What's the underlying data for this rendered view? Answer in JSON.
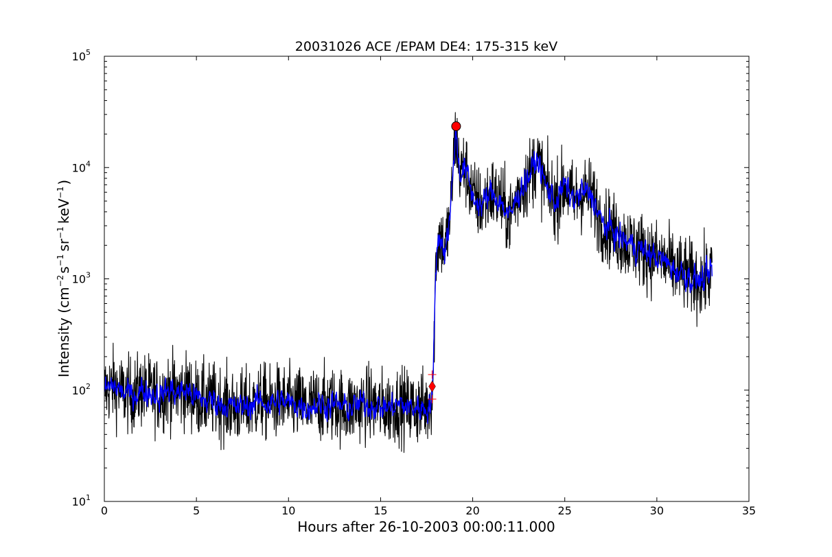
{
  "chart_data": {
    "type": "line",
    "title": "20031026 ACE /EPAM DE4: 175-315 keV",
    "xlabel": "Hours after 26-10-2003 00:00:11.000",
    "ylabel": {
      "prefix": "Intensity (cm",
      "sup1": "−2",
      "mid1": "s",
      "sup2": "−1",
      "mid2": "sr",
      "sup3": "−1",
      "mid3": "keV",
      "sup4": "−1",
      "suffix": ")"
    },
    "xlim": [
      0,
      35
    ],
    "ylim": [
      10,
      100000
    ],
    "yscale": "log",
    "grid": false,
    "x_ticks": [
      "0",
      "5",
      "10",
      "15",
      "20",
      "25",
      "30",
      "35"
    ],
    "y_ticks": [
      {
        "base": "10",
        "exp": "1"
      },
      {
        "base": "10",
        "exp": "2"
      },
      {
        "base": "10",
        "exp": "3"
      },
      {
        "base": "10",
        "exp": "4"
      },
      {
        "base": "10",
        "exp": "5"
      }
    ],
    "series": [
      {
        "color": "#000000",
        "style": "raw",
        "x": [
          0.0,
          0.5,
          1.0,
          1.5,
          2.0,
          2.5,
          3.0,
          3.5,
          4.0,
          4.5,
          5.0,
          5.5,
          6.0,
          6.5,
          7.0,
          7.5,
          8.0,
          8.5,
          9.0,
          9.5,
          10.0,
          10.5,
          11.0,
          11.5,
          12.0,
          12.5,
          13.0,
          13.5,
          14.0,
          14.5,
          15.0,
          15.5,
          16.0,
          16.5,
          17.0,
          17.5,
          17.7,
          17.85,
          18.0,
          18.2,
          18.5,
          18.8,
          19.0,
          19.1,
          19.3,
          19.6,
          20.0,
          20.5,
          21.0,
          21.5,
          22.0,
          22.5,
          23.0,
          23.5,
          24.0,
          24.5,
          25.0,
          25.5,
          26.0,
          26.5,
          27.0,
          27.5,
          28.0,
          28.5,
          29.0,
          29.5,
          30.0,
          30.5,
          31.0,
          31.5,
          32.0,
          32.5,
          32.8,
          33.0
        ],
        "y": [
          100,
          110,
          95,
          90,
          100,
          95,
          90,
          100,
          95,
          100,
          85,
          80,
          80,
          75,
          70,
          70,
          75,
          80,
          75,
          80,
          75,
          75,
          70,
          75,
          75,
          75,
          70,
          70,
          75,
          75,
          70,
          70,
          75,
          70,
          70,
          70,
          75,
          110,
          1500,
          2500,
          1800,
          4000,
          15000,
          20000,
          9000,
          10000,
          5500,
          4500,
          6000,
          5000,
          3500,
          6000,
          8000,
          12000,
          6500,
          5000,
          7000,
          5000,
          6000,
          5500,
          3200,
          2800,
          2300,
          2100,
          1900,
          1700,
          1550,
          1400,
          1200,
          1100,
          1000,
          950,
          1050,
          1200
        ],
        "noise_log": 0.17
      },
      {
        "color": "#0000ff",
        "style": "smoothed",
        "x": [
          0.0,
          0.5,
          1.0,
          1.5,
          2.0,
          2.5,
          3.0,
          3.5,
          4.0,
          4.5,
          5.0,
          5.5,
          6.0,
          6.5,
          7.0,
          7.5,
          8.0,
          8.5,
          9.0,
          9.5,
          10.0,
          10.5,
          11.0,
          11.5,
          12.0,
          12.5,
          13.0,
          13.5,
          14.0,
          14.5,
          15.0,
          15.5,
          16.0,
          16.5,
          17.0,
          17.5,
          17.7,
          17.85,
          18.0,
          18.2,
          18.5,
          18.8,
          19.0,
          19.1,
          19.3,
          19.6,
          20.0,
          20.5,
          21.0,
          21.5,
          22.0,
          22.5,
          23.0,
          23.5,
          24.0,
          24.5,
          25.0,
          25.5,
          26.0,
          26.5,
          27.0,
          27.5,
          28.0,
          28.5,
          29.0,
          29.5,
          30.0,
          30.5,
          31.0,
          31.5,
          32.0,
          32.5,
          32.8,
          33.0
        ],
        "y": [
          100,
          110,
          95,
          90,
          100,
          95,
          90,
          100,
          95,
          100,
          85,
          80,
          80,
          75,
          70,
          70,
          75,
          80,
          75,
          80,
          75,
          75,
          70,
          75,
          75,
          75,
          70,
          70,
          75,
          75,
          70,
          70,
          75,
          70,
          70,
          70,
          75,
          110,
          1500,
          2500,
          1800,
          4000,
          15000,
          20000,
          9000,
          10000,
          5500,
          4500,
          6000,
          5000,
          3500,
          6000,
          8000,
          12000,
          6500,
          5000,
          7000,
          5000,
          6000,
          5500,
          3200,
          2800,
          2300,
          2100,
          1900,
          1700,
          1550,
          1400,
          1200,
          1100,
          1000,
          950,
          1050,
          1200
        ],
        "noise_log": 0.07
      }
    ],
    "markers": [
      {
        "type": "circle",
        "x": 19.1,
        "y": 23500,
        "color": "#ff0000"
      },
      {
        "type": "diamond",
        "x": 17.8,
        "y": 108,
        "color": "#ff0000"
      },
      {
        "type": "plus",
        "x": 17.8,
        "y": 138,
        "color": "#ff0000"
      },
      {
        "type": "plus",
        "x": 17.8,
        "y": 83,
        "color": "#ff0000"
      }
    ]
  }
}
